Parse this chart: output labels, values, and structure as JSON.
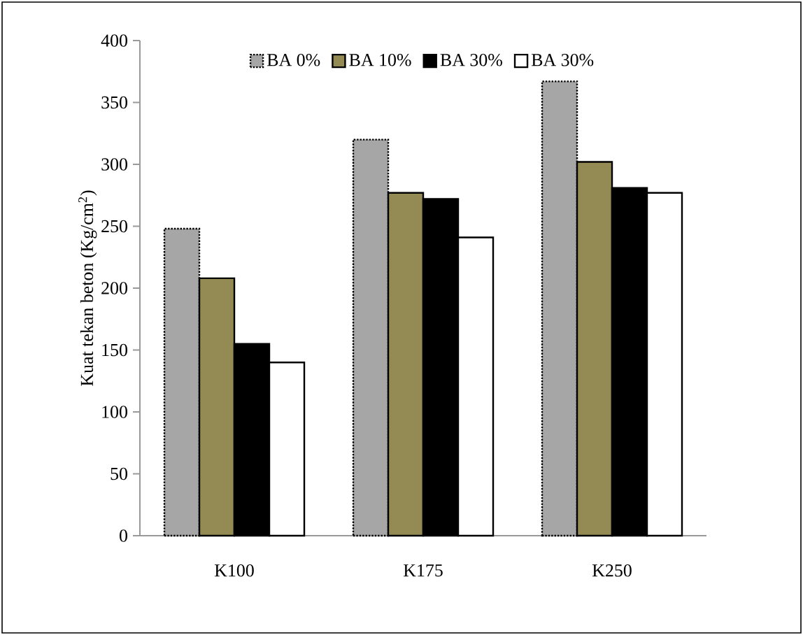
{
  "chart_data": {
    "type": "bar",
    "ylabel": "Kuat tekan beton (Kg/cm$^{2}$)",
    "categories": [
      "K100",
      "K175",
      "K250"
    ],
    "series": [
      {
        "name": "BA 0%",
        "color": "#a6a6a6",
        "line_style": "dotted",
        "values": [
          248,
          320,
          367
        ]
      },
      {
        "name": "BA 10%",
        "color": "#948a54",
        "values": [
          208,
          277,
          302
        ]
      },
      {
        "name": "BA 30%",
        "color": "#000000",
        "values": [
          155,
          272,
          281
        ]
      },
      {
        "name": "BA 30%",
        "color": "#ffffff",
        "values": [
          140,
          241,
          277
        ]
      }
    ],
    "ylim": [
      0,
      400
    ],
    "yticks": [
      0,
      50,
      100,
      150,
      200,
      250,
      300,
      350,
      400
    ],
    "legend": "top",
    "grid": false
  }
}
